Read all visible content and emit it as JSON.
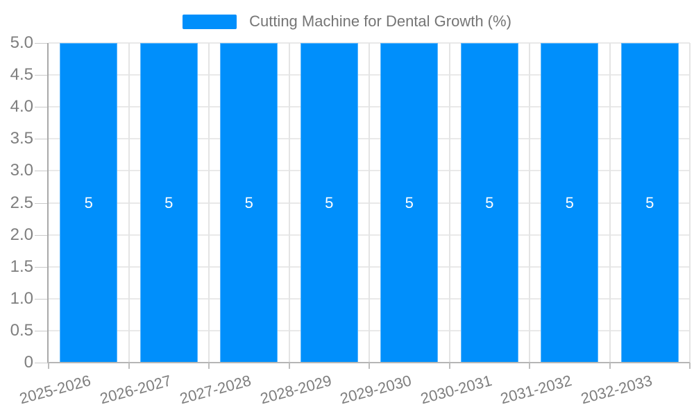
{
  "chart_data": {
    "type": "bar",
    "title": "Cutting Machine for Dental Growth (%)",
    "categories": [
      "2025-2026",
      "2026-2027",
      "2027-2028",
      "2028-2029",
      "2029-2030",
      "2030-2031",
      "2031-2032",
      "2032-2033"
    ],
    "series": [
      {
        "name": "Cutting Machine for Dental Growth (%)",
        "values": [
          5,
          5,
          5,
          5,
          5,
          5,
          5,
          5
        ]
      }
    ],
    "data_labels": [
      "5",
      "5",
      "5",
      "5",
      "5",
      "5",
      "5",
      "5"
    ],
    "xlabel": "",
    "ylabel": "",
    "ylim": [
      0,
      5
    ],
    "y_tick_labels": [
      "5.0",
      "4.5",
      "4.0",
      "3.5",
      "3.0",
      "2.5",
      "2.0",
      "1.5",
      "1.0",
      "0.5",
      "0"
    ],
    "grid": "on",
    "legend_position": "top",
    "colors": {
      "bar": "#008FFB",
      "bar_label": "#ffffff",
      "axis_label": "#7e7e7e",
      "legend_text": "#757575",
      "gridline": "#e9e9e9",
      "axis_line": "#a9a9a9"
    }
  }
}
